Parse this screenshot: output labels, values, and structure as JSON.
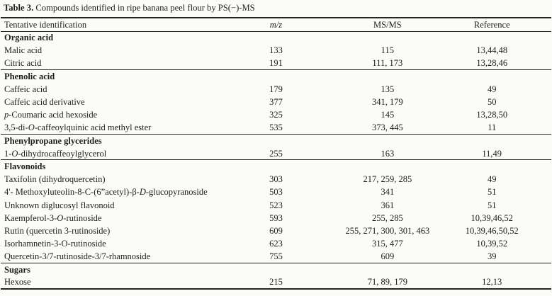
{
  "colors": {
    "background": "#fbfbf8",
    "text": "#1d1d1d",
    "rule": "#242424"
  },
  "title": {
    "label": "Table 3.",
    "text": " Compounds identified in ripe banana peel flour by PS(−)-MS"
  },
  "table": {
    "columns": [
      {
        "key": "name",
        "label": "Tentative identification",
        "align": "left",
        "italic": false
      },
      {
        "key": "mz",
        "label": "m/z",
        "align": "center",
        "italic": true
      },
      {
        "key": "msms",
        "label": "MS/MS",
        "align": "center",
        "italic": false
      },
      {
        "key": "ref",
        "label": "Reference",
        "align": "center",
        "italic": false
      }
    ],
    "rows": [
      {
        "type": "section",
        "rule": false,
        "name": [
          {
            "t": "Organic acid"
          }
        ]
      },
      {
        "type": "data",
        "name": [
          {
            "t": "Malic acid"
          }
        ],
        "mz": "133",
        "msms": "115",
        "ref": "13,44,48"
      },
      {
        "type": "data",
        "name": [
          {
            "t": "Citric acid"
          }
        ],
        "mz": "191",
        "msms": "111, 173",
        "ref": "13,28,46"
      },
      {
        "type": "section",
        "rule": true,
        "name": [
          {
            "t": "Phenolic acid"
          }
        ]
      },
      {
        "type": "data",
        "name": [
          {
            "t": "Caffeic acid"
          }
        ],
        "mz": "179",
        "msms": "135",
        "ref": "49"
      },
      {
        "type": "data",
        "name": [
          {
            "t": "Caffeic acid derivative"
          }
        ],
        "mz": "377",
        "msms": "341, 179",
        "ref": "50"
      },
      {
        "type": "data",
        "name": [
          {
            "t": "p",
            "i": true
          },
          {
            "t": "-Coumaric acid hexoside"
          }
        ],
        "mz": "325",
        "msms": "145",
        "ref": "13,28,50"
      },
      {
        "type": "data",
        "name": [
          {
            "t": "3,5-di-"
          },
          {
            "t": "O",
            "i": true
          },
          {
            "t": "-caffeoylquinic acid methyl ester"
          }
        ],
        "mz": "535",
        "msms": "373, 445",
        "ref": "11"
      },
      {
        "type": "section",
        "rule": true,
        "name": [
          {
            "t": "Phenylpropane glycerides"
          }
        ]
      },
      {
        "type": "data",
        "name": [
          {
            "t": "1-"
          },
          {
            "t": "O",
            "i": true
          },
          {
            "t": "-dihydrocaffeoylglycerol"
          }
        ],
        "mz": "255",
        "msms": "163",
        "ref": "11,49"
      },
      {
        "type": "section",
        "rule": true,
        "name": [
          {
            "t": "Flavonoids"
          }
        ]
      },
      {
        "type": "data",
        "name": [
          {
            "t": "Taxifolin (dihydroquercetin)"
          }
        ],
        "mz": "303",
        "msms": "217, 259, 285",
        "ref": "49"
      },
      {
        "type": "data",
        "name": [
          {
            "t": "4'- Methoxyluteolin-8-C-(6”acetyl)-β-"
          },
          {
            "t": "D",
            "i": true
          },
          {
            "t": "-glucopyranoside"
          }
        ],
        "mz": "503",
        "msms": "341",
        "ref": "51"
      },
      {
        "type": "data",
        "name": [
          {
            "t": "Unknown diglucosyl flavonoid"
          }
        ],
        "mz": "523",
        "msms": "361",
        "ref": "51"
      },
      {
        "type": "data",
        "name": [
          {
            "t": "Kaempferol-3-"
          },
          {
            "t": "O",
            "i": true
          },
          {
            "t": "-rutinoside"
          }
        ],
        "mz": "593",
        "msms": "255, 285",
        "ref": "10,39,46,52"
      },
      {
        "type": "data",
        "name": [
          {
            "t": "Rutin (quercetin 3-rutinoside)"
          }
        ],
        "mz": "609",
        "msms": "255, 271, 300, 301, 463",
        "ref": "10,39,46,50,52"
      },
      {
        "type": "data",
        "name": [
          {
            "t": "Isorhamnetin-3-O-rutinoside"
          }
        ],
        "mz": "623",
        "msms": "315, 477",
        "ref": "10,39,52"
      },
      {
        "type": "data",
        "name": [
          {
            "t": "Quercetin-3/7-rutinoside-3/7-rhamnoside"
          }
        ],
        "mz": "755",
        "msms": "609",
        "ref": "39"
      },
      {
        "type": "section",
        "rule": true,
        "name": [
          {
            "t": "Sugars"
          }
        ]
      },
      {
        "type": "data",
        "name": [
          {
            "t": "Hexose"
          }
        ],
        "mz": "215",
        "msms": "71, 89, 179",
        "ref": "12,13"
      }
    ]
  }
}
